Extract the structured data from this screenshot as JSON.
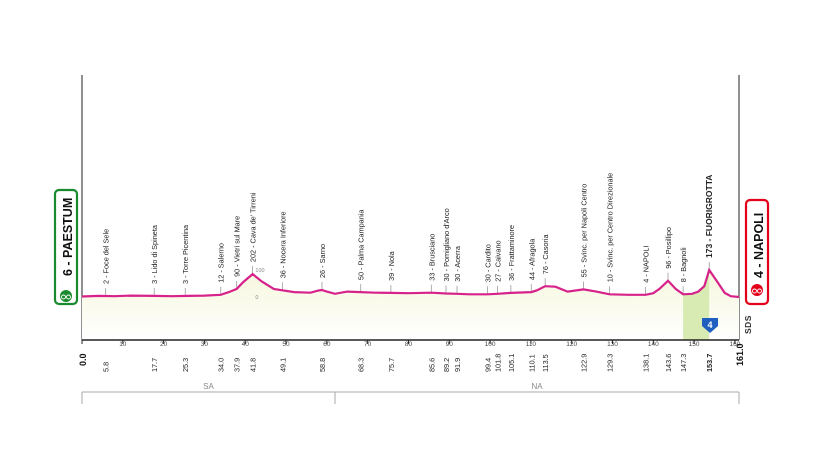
{
  "chart_data": {
    "type": "area",
    "start": {
      "label": "6 - PAESTUM",
      "color": "#1a8a2e"
    },
    "finish": {
      "label": "4 - NAPOLI",
      "color": "#e2001a"
    },
    "xlim": [
      0,
      161.0
    ],
    "x_ticks": [
      0,
      10,
      20,
      30,
      40,
      50,
      60,
      70,
      80,
      90,
      100,
      110,
      120,
      130,
      140,
      150,
      160
    ],
    "altitude_marks": [
      "100",
      "0"
    ],
    "profile": {
      "x": [
        0,
        4,
        8,
        12,
        17.7,
        22,
        26,
        30,
        34,
        36,
        37.9,
        39.5,
        41.8,
        44,
        47,
        49.1,
        52,
        56,
        58,
        58.8,
        60,
        62,
        65,
        68.3,
        72,
        75.7,
        80,
        85.6,
        89.2,
        91.9,
        95,
        99.4,
        101.8,
        105.1,
        110.1,
        111.5,
        113.5,
        116,
        119,
        122.9,
        126,
        129.3,
        134,
        138.1,
        140,
        141.5,
        143.6,
        145.5,
        147.3,
        149.5,
        151,
        152.5,
        153.7,
        155.5,
        157.5,
        159,
        161
      ],
      "y": [
        2,
        4,
        3,
        5,
        4,
        3,
        4,
        5,
        8,
        18,
        30,
        55,
        85,
        58,
        30,
        25,
        18,
        16,
        24,
        26,
        20,
        12,
        20,
        18,
        16,
        15,
        14,
        16,
        13,
        12,
        10,
        10,
        12,
        15,
        18,
        25,
        40,
        38,
        20,
        28,
        20,
        10,
        8,
        8,
        14,
        30,
        60,
        30,
        10,
        12,
        20,
        40,
        100,
        60,
        15,
        3,
        0
      ]
    },
    "waypoints": [
      {
        "km": "5.8",
        "label": "2 - Foce del Sele"
      },
      {
        "km": "17.7",
        "label": "3 - Lido di Spineta"
      },
      {
        "km": "25.3",
        "label": "3 - Torre Picentina"
      },
      {
        "km": "34.0",
        "label": "12 - Salerno"
      },
      {
        "km": "37.9",
        "label": "90 - Vietri sul Mare"
      },
      {
        "km": "41.8",
        "label": "202 - Cava de' Tirreni"
      },
      {
        "km": "49.1",
        "label": "36 - Nocera Inferiore"
      },
      {
        "km": "58.8",
        "label": "26 - Sarno"
      },
      {
        "km": "68.3",
        "label": "50 - Palma Campania"
      },
      {
        "km": "75.7",
        "label": "39 - Nola"
      },
      {
        "km": "85.6",
        "label": "33 - Brusciano"
      },
      {
        "km": "89.2",
        "label": "30 - Pomigliano d'Arco"
      },
      {
        "km": "91.9",
        "label": "30 - Acerra"
      },
      {
        "km": "99.4",
        "label": "30 - Cardito"
      },
      {
        "km": "101.8",
        "label": "27 - Caivano"
      },
      {
        "km": "105.1",
        "label": "36 - Frattaminore"
      },
      {
        "km": "110.1",
        "label": "44 - Afragola"
      },
      {
        "km": "113.5",
        "label": "76 - Casoria"
      },
      {
        "km": "122.9",
        "label": "55 - Svinc. per Napoli Centro"
      },
      {
        "km": "129.3",
        "label": "10 - Svinc. per Centro Direzionale"
      },
      {
        "km": "138.1",
        "label": "4 - NAPOLI"
      },
      {
        "km": "143.6",
        "label": "96 - Posillipo"
      },
      {
        "km": "147.3",
        "label": "8 - Bagnoli"
      },
      {
        "km": "153.7",
        "label": "173 - FUORIGROTTA",
        "gpm": true
      }
    ],
    "start_km": "0.0",
    "finish_km": "161.0",
    "gpm_category": "4",
    "provinces": [
      {
        "label": "SA",
        "from": 0,
        "to": 62
      },
      {
        "label": "NA",
        "from": 62,
        "to": 161
      }
    ],
    "logo_text": "SDS",
    "colors": {
      "profile_line": "#d6228a",
      "fill_top": "#f6f7dc",
      "fill_bottom": "#ffffff",
      "climb_fill": "#d7ebb2",
      "gpm_badge": "#1f5fbf",
      "axis": "#222222",
      "guide": "#9a9a9a"
    }
  }
}
